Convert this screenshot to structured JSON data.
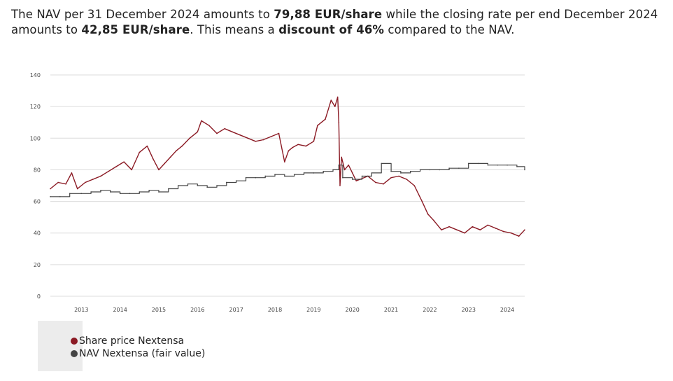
{
  "intro": {
    "p1": "The NAV per 31 December 2024 amounts to ",
    "nav_value": "79,88 EUR/share",
    "p2": " while the closing rate per end December 2024 amounts to ",
    "close_value": "42,85 EUR/share",
    "p3": ". This means a ",
    "discount": "discount of 46%",
    "p4": " compared to the NAV."
  },
  "chart_data": {
    "type": "line",
    "ylim": [
      0,
      140
    ],
    "y_ticks": [
      "140",
      "120",
      "100",
      "80",
      "60",
      "40",
      "20",
      "0"
    ],
    "y_tick_values": [
      140,
      120,
      100,
      80,
      60,
      40,
      20,
      0
    ],
    "xlim": [
      2012.2,
      2024.45
    ],
    "x_ticks": [
      "2013",
      "2014",
      "2015",
      "2016",
      "2017",
      "2018",
      "2019",
      "2020",
      "2021",
      "2022",
      "2023",
      "2024"
    ],
    "x_tick_values": [
      2013,
      2014,
      2015,
      2016,
      2017,
      2018,
      2019,
      2020,
      2021,
      2022,
      2023,
      2024
    ],
    "grid": true,
    "legend_position": "bottom-left",
    "series": [
      {
        "name": "Share price Nextensa",
        "color": "#8b1a24",
        "x": [
          2012.2,
          2012.4,
          2012.6,
          2012.75,
          2012.9,
          2013.1,
          2013.3,
          2013.5,
          2013.7,
          2013.9,
          2014.1,
          2014.3,
          2014.5,
          2014.7,
          2014.85,
          2015.0,
          2015.15,
          2015.3,
          2015.45,
          2015.6,
          2015.8,
          2016.0,
          2016.1,
          2016.3,
          2016.5,
          2016.7,
          2016.9,
          2017.1,
          2017.3,
          2017.5,
          2017.7,
          2017.9,
          2018.1,
          2018.25,
          2018.35,
          2018.45,
          2018.6,
          2018.8,
          2019.0,
          2019.1,
          2019.3,
          2019.45,
          2019.55,
          2019.62,
          2019.65,
          2019.68,
          2019.72,
          2019.8,
          2019.9,
          2020.0,
          2020.1,
          2020.2,
          2020.4,
          2020.6,
          2020.8,
          2021.0,
          2021.2,
          2021.4,
          2021.6,
          2021.8,
          2021.95,
          2022.1,
          2022.3,
          2022.5,
          2022.7,
          2022.9,
          2023.1,
          2023.3,
          2023.5,
          2023.7,
          2023.9,
          2024.1,
          2024.3,
          2024.45
        ],
        "values": [
          68,
          72,
          71,
          78,
          68,
          72,
          74,
          76,
          79,
          82,
          85,
          80,
          91,
          95,
          87,
          80,
          84,
          88,
          92,
          95,
          100,
          104,
          111,
          108,
          103,
          106,
          104,
          102,
          100,
          98,
          99,
          101,
          103,
          85,
          92,
          94,
          96,
          95,
          98,
          108,
          112,
          124,
          120,
          126,
          110,
          70,
          88,
          80,
          83,
          78,
          73,
          74,
          76,
          72,
          71,
          75,
          76,
          74,
          70,
          60,
          52,
          48,
          42,
          44,
          42,
          40,
          44,
          42,
          45,
          43,
          41,
          40,
          38,
          42
        ]
      },
      {
        "name": "NAV Nextensa (fair value)",
        "color": "#444444",
        "x": [
          2012.2,
          2012.45,
          2012.7,
          2013.0,
          2013.25,
          2013.5,
          2013.75,
          2014.0,
          2014.25,
          2014.5,
          2014.75,
          2015.0,
          2015.25,
          2015.5,
          2015.75,
          2016.0,
          2016.25,
          2016.5,
          2016.75,
          2017.0,
          2017.25,
          2017.5,
          2017.75,
          2018.0,
          2018.25,
          2018.5,
          2018.75,
          2019.0,
          2019.25,
          2019.5,
          2019.65,
          2019.75,
          2020.0,
          2020.25,
          2020.5,
          2020.75,
          2021.0,
          2021.25,
          2021.5,
          2021.75,
          2022.0,
          2022.25,
          2022.5,
          2022.75,
          2023.0,
          2023.25,
          2023.5,
          2023.75,
          2024.0,
          2024.25,
          2024.45
        ],
        "values": [
          63,
          63,
          65,
          65,
          66,
          67,
          66,
          65,
          65,
          66,
          67,
          66,
          68,
          70,
          71,
          70,
          69,
          70,
          72,
          73,
          75,
          75,
          76,
          77,
          76,
          77,
          78,
          78,
          79,
          80,
          83,
          75,
          74,
          76,
          78,
          84,
          79,
          78,
          79,
          80,
          80,
          80,
          81,
          81,
          84,
          84,
          83,
          83,
          83,
          82,
          80
        ]
      }
    ]
  },
  "legend": {
    "items": [
      {
        "label": "Share price Nextensa",
        "color": "#8b1a24"
      },
      {
        "label": "NAV Nextensa (fair value)",
        "color": "#444444"
      }
    ]
  }
}
